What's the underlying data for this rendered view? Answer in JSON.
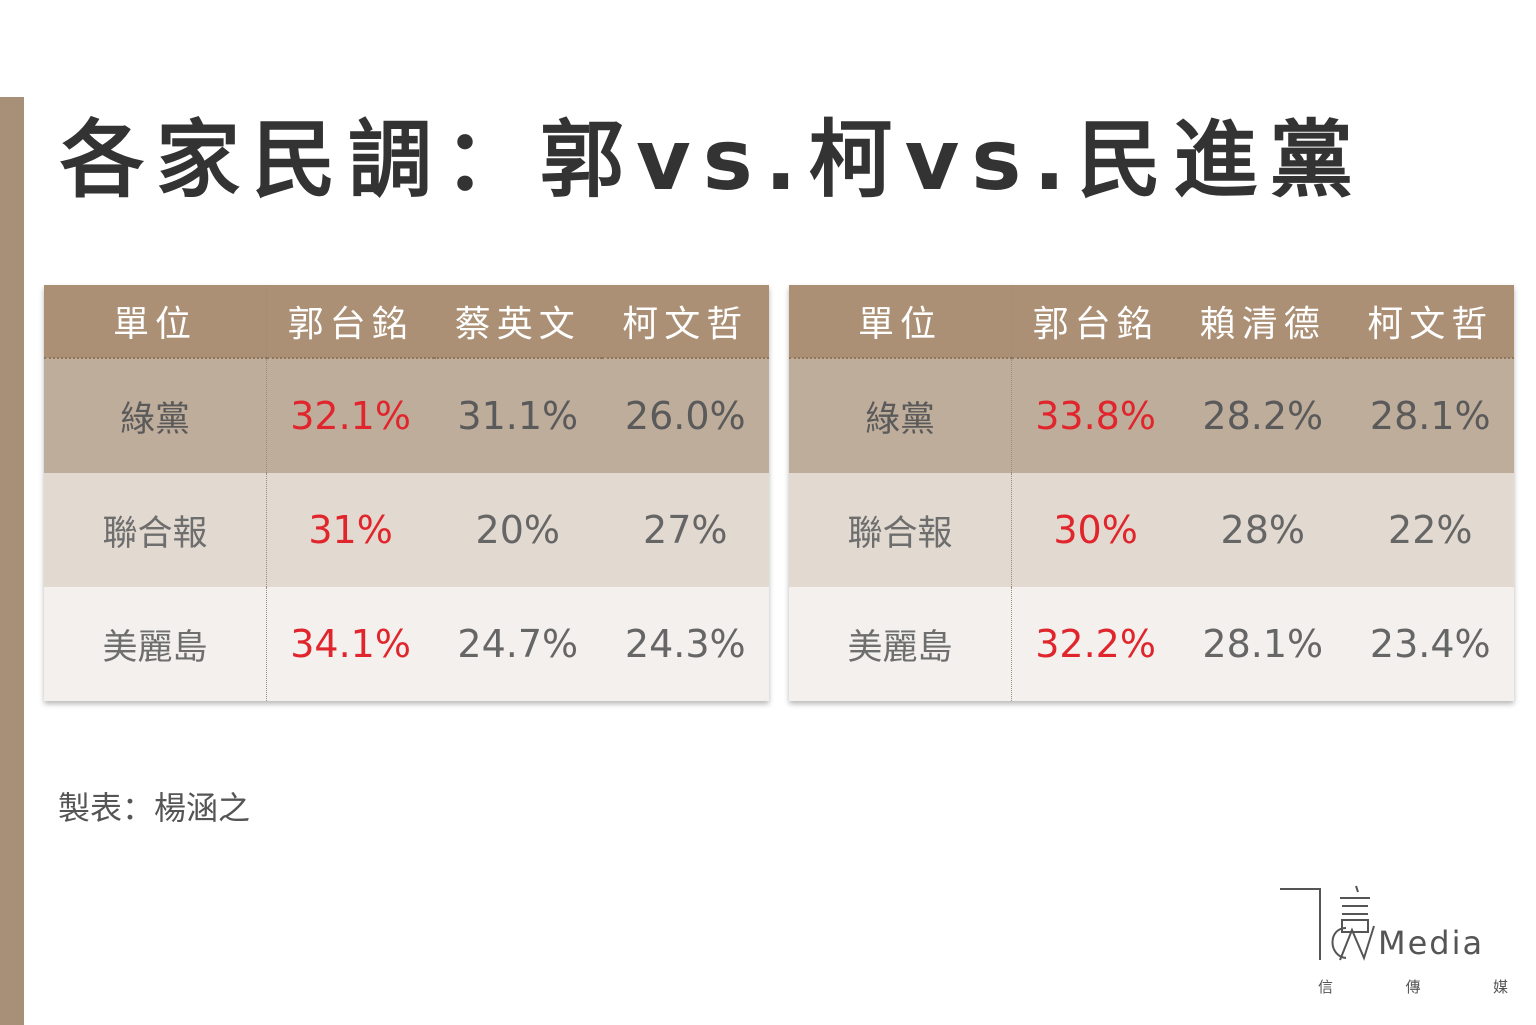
{
  "title": "各家民調：郭vs.柯vs.民進黨",
  "credit": "製表：楊涵之",
  "colors": {
    "header_bg": "#ab9075",
    "highlight_text": "#e0262c",
    "row_shades": [
      "#bfad9c",
      "#e2d9d1",
      "#f3f0ed"
    ],
    "side_bar": "#a89078"
  },
  "chart_data": [
    {
      "type": "table",
      "columns": [
        "單位",
        "郭台銘",
        "蔡英文",
        "柯文哲"
      ],
      "rows": [
        {
          "unit": "綠黨",
          "values": [
            "32.1%",
            "31.1%",
            "26.0%"
          ]
        },
        {
          "unit": "聯合報",
          "values": [
            "31%",
            "20%",
            "27%"
          ]
        },
        {
          "unit": "美麗島",
          "values": [
            "34.1%",
            "24.7%",
            "24.3%"
          ]
        }
      ],
      "highlight_column": 0
    },
    {
      "type": "table",
      "columns": [
        "單位",
        "郭台銘",
        "賴清德",
        "柯文哲"
      ],
      "rows": [
        {
          "unit": "綠黨",
          "values": [
            "33.8%",
            "28.2%",
            "28.1%"
          ]
        },
        {
          "unit": "聯合報",
          "values": [
            "30%",
            "28%",
            "22%"
          ]
        },
        {
          "unit": "美麗島",
          "values": [
            "32.2%",
            "28.1%",
            "23.4%"
          ]
        }
      ],
      "highlight_column": 0
    }
  ],
  "logo": {
    "word": "Media",
    "sub": [
      "信",
      "傳",
      "媒"
    ]
  }
}
